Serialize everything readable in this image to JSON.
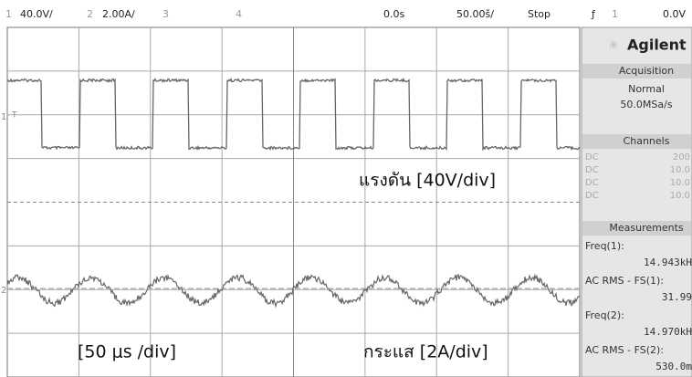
{
  "top_bar": {
    "ch1_num": "1",
    "ch1_scale": "40.0V/",
    "ch2_num": "2",
    "ch2_scale": "2.00A/",
    "ch3_num": "3",
    "ch4_num": "4",
    "delay": "0.0s",
    "timebase": "50.00š/",
    "run_state": "Stop",
    "trigger_symbol": "ƒ",
    "trigger_source": "1",
    "trigger_level": "0.0V"
  },
  "markers": {
    "ch1": "1",
    "ch2": "2",
    "trigger": "T"
  },
  "annotations": {
    "voltage": "แรงดัน [40V/div]",
    "time": "[50 μs /div]",
    "current": "กระแส [2A/div]"
  },
  "panel": {
    "brand": "Agilent",
    "acquisition": {
      "title": "Acquisition",
      "mode": "Normal",
      "rate": "50.0MSa/s"
    },
    "channels": {
      "title": "Channels",
      "rows": [
        [
          "DC",
          "200"
        ],
        [
          "DC",
          "10.0"
        ],
        [
          "DC",
          "10.0"
        ],
        [
          "DC",
          "10.0"
        ]
      ]
    },
    "measurements": {
      "title": "Measurements",
      "items": [
        {
          "label": "Freq(1):",
          "value": "14.943kH"
        },
        {
          "label": "AC RMS - FS(1):",
          "value": "31.99"
        },
        {
          "label": "Freq(2):",
          "value": "14.970kH"
        },
        {
          "label": "AC RMS - FS(2):",
          "value": "530.0m"
        }
      ]
    }
  }
}
